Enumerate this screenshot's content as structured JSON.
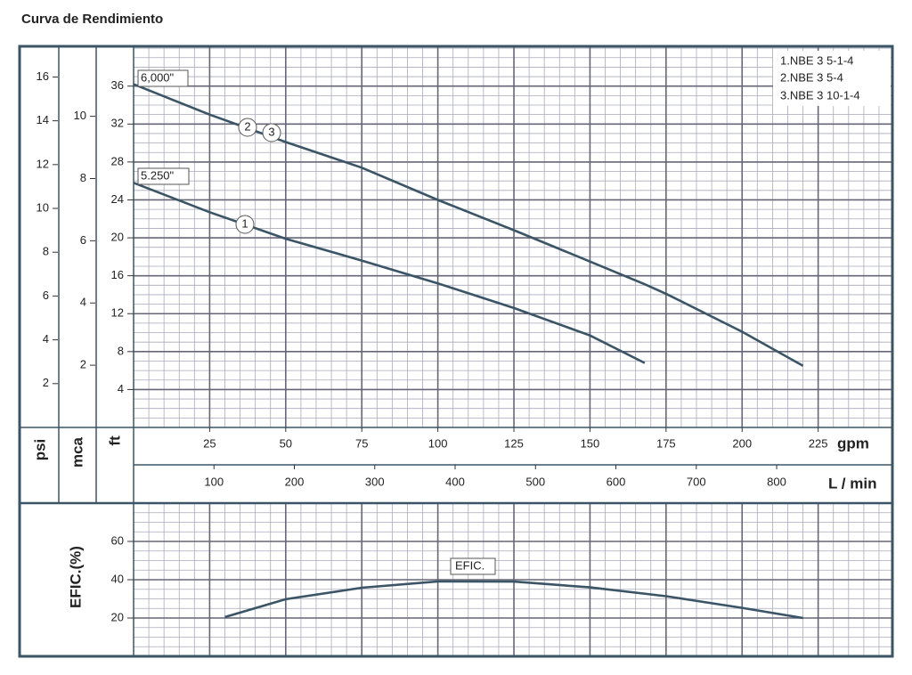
{
  "chart_data": [
    {
      "type": "line",
      "title": "Curva de Rendimiento",
      "x": [
        0,
        25,
        50,
        75,
        100,
        125,
        150,
        168,
        175,
        200,
        220
      ],
      "xlim": [
        0,
        249.4
      ],
      "xticks": [
        25,
        50,
        75,
        100,
        125,
        150,
        175,
        200,
        225
      ],
      "xlabel": "gpm",
      "x2lim": [
        0,
        944
      ],
      "x2ticks": [
        100,
        200,
        300,
        400,
        500,
        600,
        700,
        800
      ],
      "x2label": "L / min",
      "ylim": [
        0,
        40.2
      ],
      "yticks": [
        4,
        8,
        12,
        16,
        20,
        24,
        28,
        32,
        36
      ],
      "ylabel": "ft",
      "y2lim": [
        0,
        12.25
      ],
      "y2ticks": [
        2,
        4,
        6,
        8,
        10
      ],
      "y2label": "mca",
      "y3lim": [
        0,
        17.4
      ],
      "y3ticks": [
        2,
        4,
        6,
        8,
        10,
        12,
        14,
        16
      ],
      "y3label": "psi",
      "grid": true,
      "color": "#3b5566",
      "series": [
        {
          "name": "5.250\"",
          "curve_labels": [
            "1"
          ],
          "values": [
            25.8,
            22.7,
            19.9,
            17.6,
            15.2,
            12.6,
            9.7,
            6.8,
            null,
            null,
            null
          ]
        },
        {
          "name": "6,000\"",
          "curve_labels": [
            "2",
            "3"
          ],
          "values": [
            36.2,
            33.0,
            30.1,
            27.4,
            24.0,
            20.8,
            17.5,
            15.1,
            14.1,
            10.1,
            6.5
          ]
        }
      ],
      "legend": [
        "1.NBE 3 5-1-4",
        "2.NBE 3 5-4",
        "3.NBE 3 10-1-4"
      ]
    },
    {
      "type": "line",
      "x": [
        30,
        50,
        75,
        100,
        125,
        150,
        175,
        200,
        220
      ],
      "xlim": [
        0,
        249.4
      ],
      "xticks": [
        25,
        50,
        75,
        100,
        125,
        150,
        175,
        200,
        225
      ],
      "ylim": [
        0,
        80
      ],
      "yticks": [
        20,
        40,
        60
      ],
      "ylabel": "EFIC.(%)",
      "grid": true,
      "color": "#3b5566",
      "series": [
        {
          "name": "EFIC.",
          "values": [
            20.5,
            29.8,
            35.8,
            39.1,
            39.0,
            36.0,
            31.4,
            25.3,
            20.0
          ]
        }
      ]
    }
  ]
}
